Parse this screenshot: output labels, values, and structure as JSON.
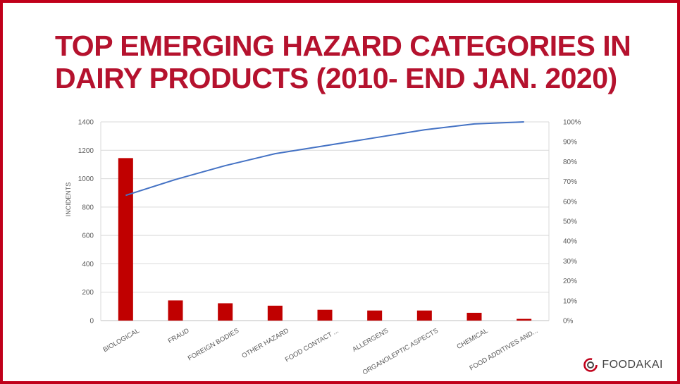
{
  "title": {
    "line1": "TOP EMERGING HAZARD CATEGORIES IN",
    "line2": "DAIRY PRODUCTS (2010- END JAN. 2020)"
  },
  "brand": {
    "name": "FOODAKAI",
    "icon": "foodakai-logo-icon"
  },
  "colors": {
    "bar": "#c00000",
    "line": "#4472c4",
    "title": "#b5122e",
    "border": "#c0001a"
  },
  "chart_data": {
    "type": "bar",
    "title": "",
    "categories": [
      "BIOLOGICAL",
      "FRAUD",
      "FOREIGN BODIES",
      "OTHER HAZARD",
      "FOOD CONTACT ...",
      "ALLERGENS",
      "ORGANOLEPTIC ASPECTS",
      "CHEMICAL",
      "FOOD ADDITIVES AND..."
    ],
    "series": [
      {
        "type": "bar",
        "axis": "left",
        "values": [
          1145,
          142,
          122,
          105,
          76,
          71,
          71,
          55,
          12
        ]
      },
      {
        "type": "line",
        "axis": "right",
        "values": [
          63,
          71,
          78,
          84,
          88,
          92,
          96,
          99,
          100
        ]
      }
    ],
    "ylabel": "INCIDENTS",
    "xlabel": "",
    "ylim": [
      0,
      1400
    ],
    "yticks": [
      0,
      200,
      400,
      600,
      800,
      1000,
      1200,
      1400
    ],
    "y2lim": [
      0,
      100
    ],
    "y2ticks": [
      "0%",
      "10%",
      "20%",
      "30%",
      "40%",
      "50%",
      "60%",
      "70%",
      "80%",
      "90%",
      "100%"
    ],
    "grid": true,
    "legend": "none"
  }
}
